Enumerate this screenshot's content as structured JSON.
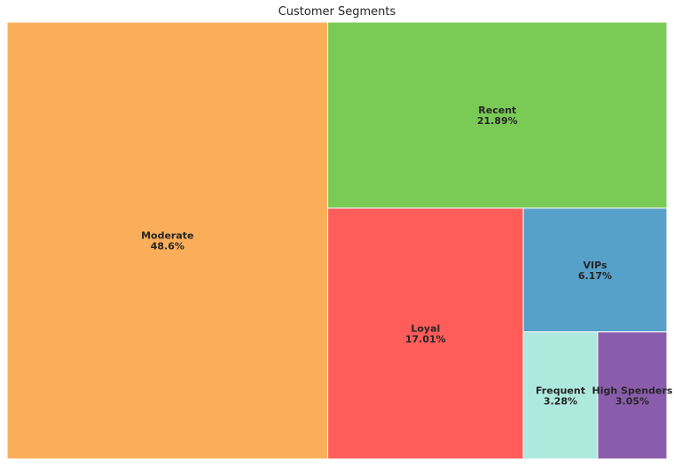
{
  "chart_data": {
    "type": "treemap",
    "title": "Customer Segments",
    "segments": [
      {
        "name": "Moderate",
        "value": 48.6,
        "label": "48.6%",
        "color": "#fbae5a"
      },
      {
        "name": "Recent",
        "value": 21.89,
        "label": "21.89%",
        "color": "#7aca56"
      },
      {
        "name": "Loyal",
        "value": 17.01,
        "label": "17.01%",
        "color": "#ff5c5a"
      },
      {
        "name": "VIPs",
        "value": 6.17,
        "label": "6.17%",
        "color": "#57a0ca"
      },
      {
        "name": "Frequent",
        "value": 3.28,
        "label": "3.28%",
        "color": "#aee9de"
      },
      {
        "name": "High Spenders",
        "value": 3.05,
        "label": "3.05%",
        "color": "#8a5dac"
      }
    ],
    "legend": "none",
    "grid": false,
    "tile_border_color": "#ffffff",
    "background_color": "#ffffff"
  }
}
